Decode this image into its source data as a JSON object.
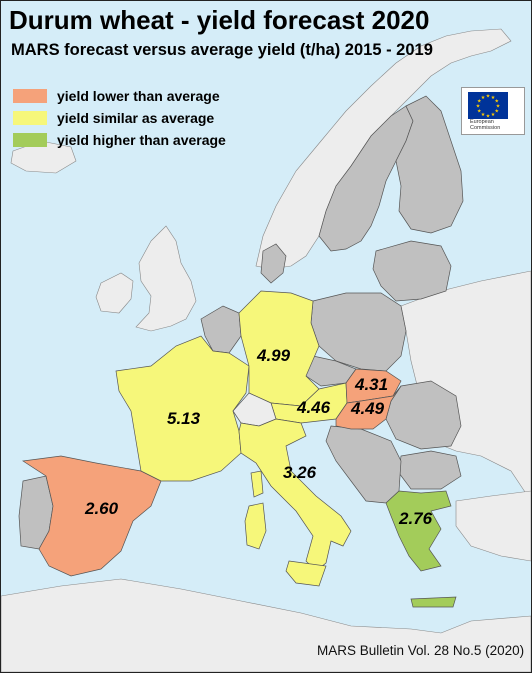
{
  "title": "Durum wheat - yield forecast 2020",
  "subtitle": "MARS forecast versus average yield (t/ha) 2015 - 2019",
  "legend": [
    {
      "label": "yield lower than average",
      "color": "#f5a27a"
    },
    {
      "label": "yield similar as average",
      "color": "#f6f77a"
    },
    {
      "label": "yield higher than average",
      "color": "#a3cc5a"
    }
  ],
  "logo": {
    "line1": "European",
    "line2": "Commission"
  },
  "map_colors": {
    "sea": "#d5edf8",
    "land_no_data": "#c0c0c0",
    "non_eu": "#ededed",
    "border": "#555555"
  },
  "countries": [
    {
      "name": "Spain",
      "yield": "2.60",
      "category": "lower"
    },
    {
      "name": "France",
      "yield": "5.13",
      "category": "similar"
    },
    {
      "name": "Germany",
      "yield": "4.99",
      "category": "similar"
    },
    {
      "name": "Austria",
      "yield": "4.46",
      "category": "similar"
    },
    {
      "name": "Slovakia",
      "yield": "4.31",
      "category": "lower"
    },
    {
      "name": "Hungary",
      "yield": "4.49",
      "category": "lower"
    },
    {
      "name": "Italy",
      "yield": "3.26",
      "category": "similar"
    },
    {
      "name": "Greece",
      "yield": "2.76",
      "category": "higher"
    }
  ],
  "source": "MARS Bulletin Vol. 28 No.5 (2020)"
}
